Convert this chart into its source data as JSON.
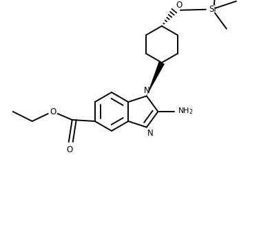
{
  "background_color": "#ffffff",
  "line_color": "#000000",
  "line_width": 1.4,
  "fig_width": 3.92,
  "fig_height": 3.6,
  "dpi": 100,
  "xlim": [
    0,
    392
  ],
  "ylim": [
    0,
    360
  ]
}
